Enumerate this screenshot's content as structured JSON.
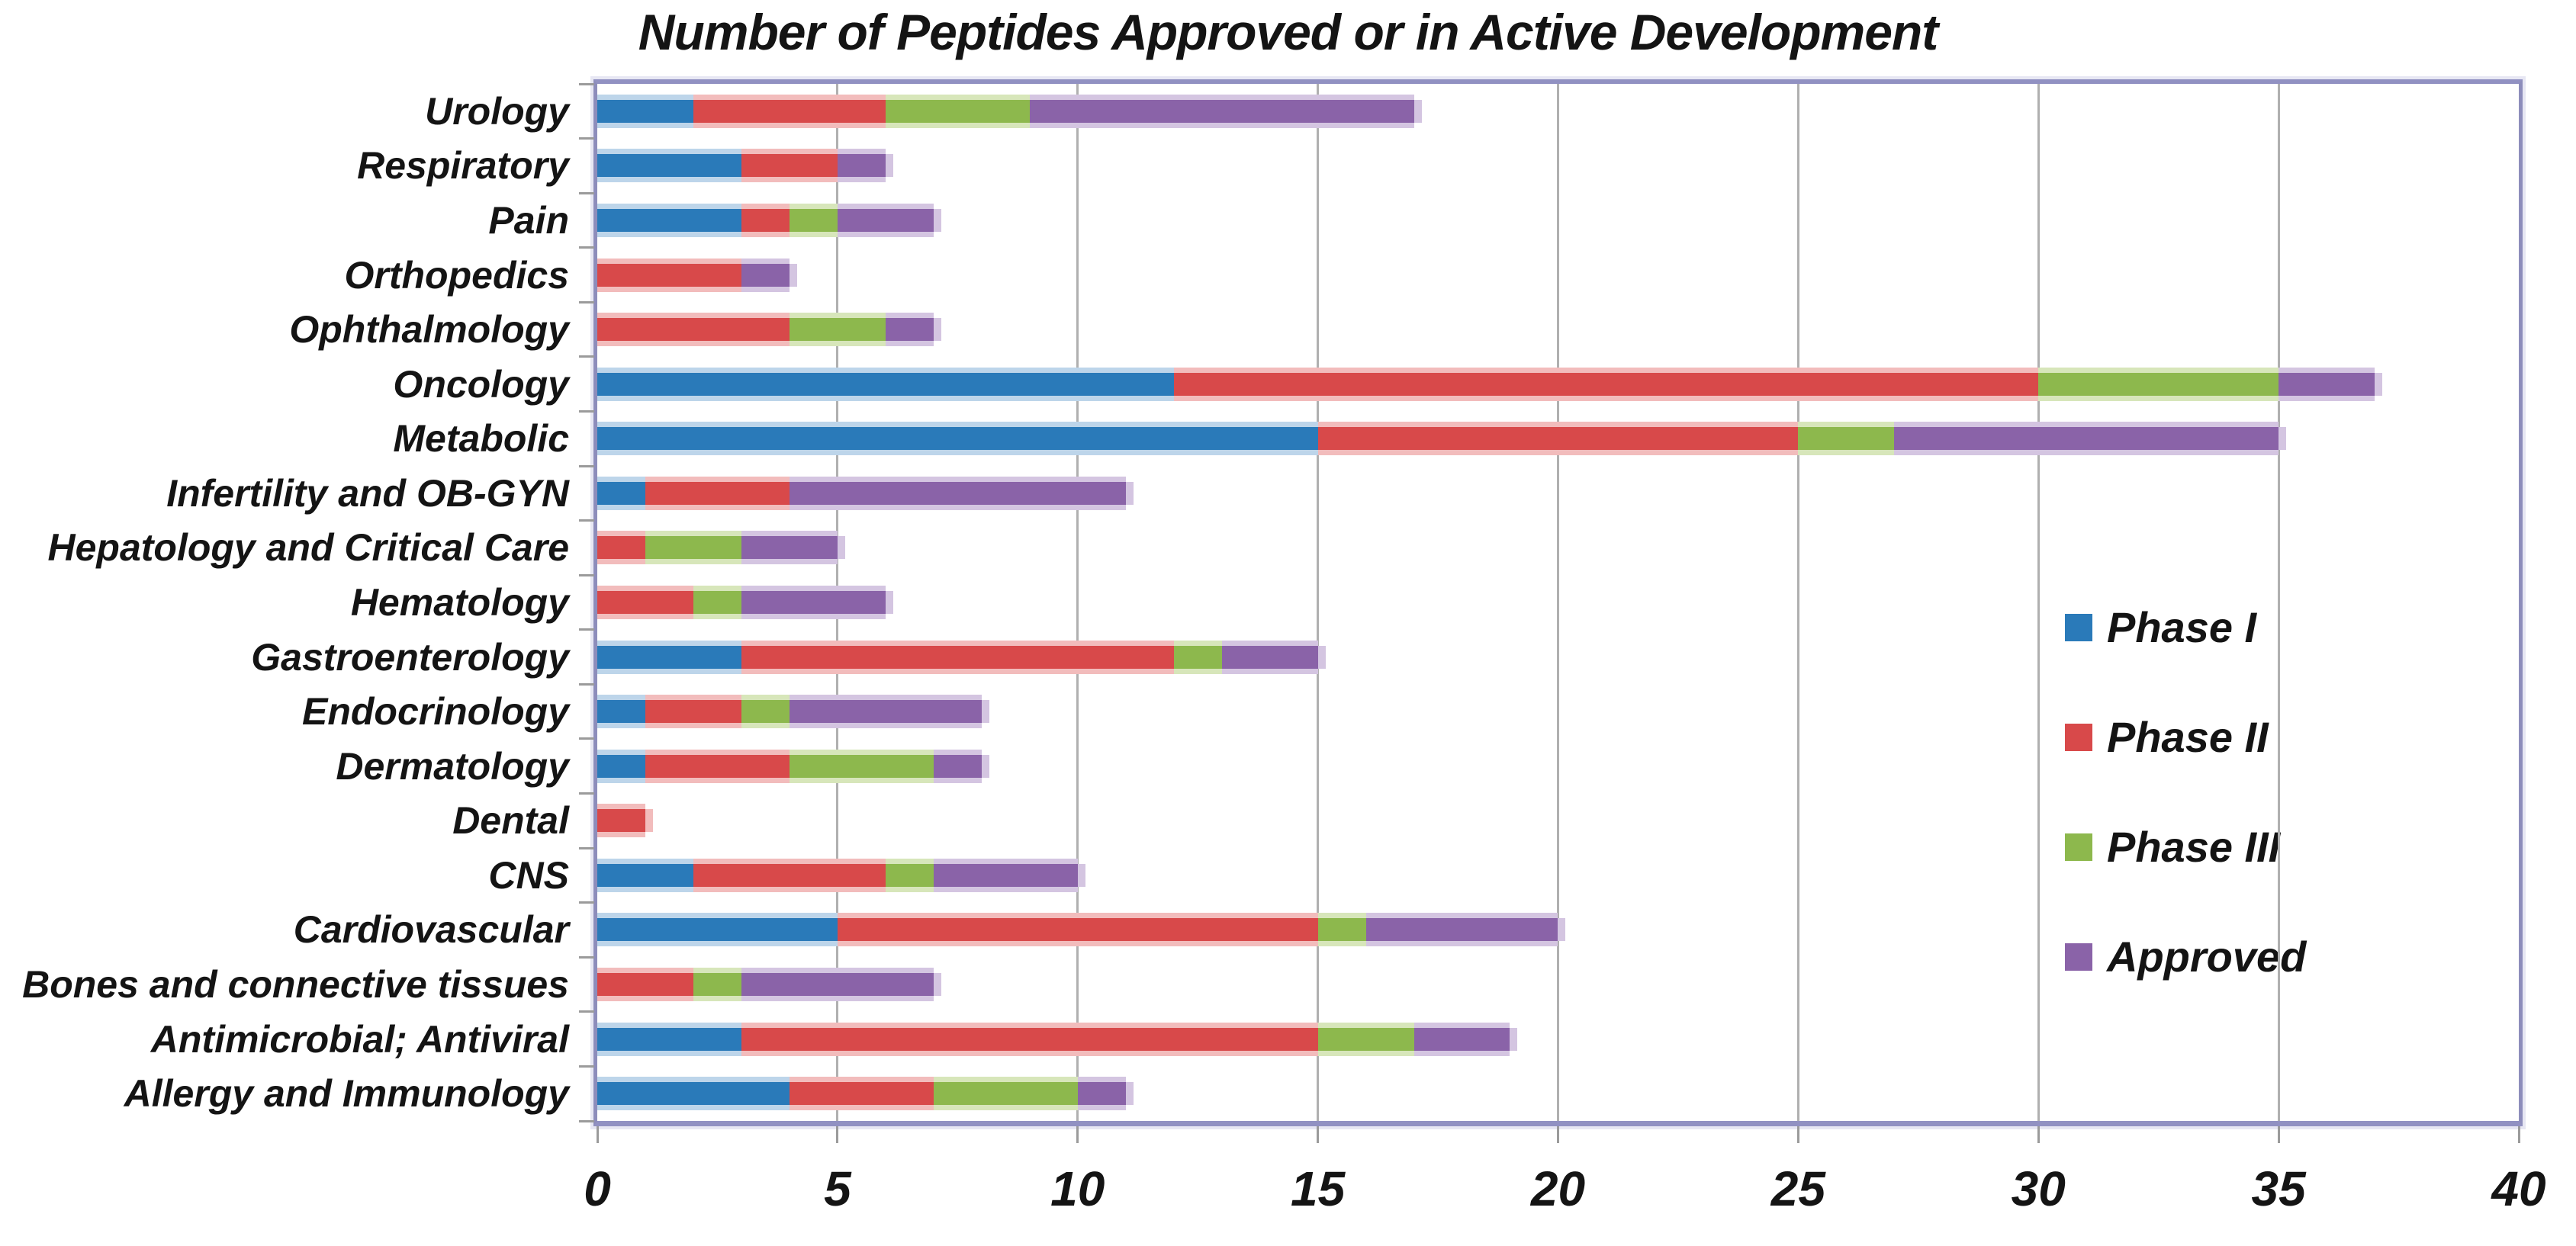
{
  "title": "Number of Peptides Approved or in Active Development",
  "colors": {
    "background": "#ffffff",
    "text": "#141414",
    "gridline": "#b0b0b0",
    "tick": "#9b9b9b",
    "plot_border": "#9191c2"
  },
  "chart_data": {
    "type": "bar",
    "orientation": "horizontal",
    "stacked": true,
    "title": "Number of Peptides Approved or in Active Development",
    "xlabel": "",
    "ylabel": "",
    "xlim": [
      0,
      40
    ],
    "xticks": [
      0,
      5,
      10,
      15,
      20,
      25,
      30,
      35,
      40
    ],
    "grid": true,
    "legend_position": "middle-right",
    "categories": [
      "Urology",
      "Respiratory",
      "Pain",
      "Orthopedics",
      "Ophthalmology",
      "Oncology",
      "Metabolic",
      "Infertility and OB-GYN",
      "Hepatology and Critical Care",
      "Hematology",
      "Gastroenterology",
      "Endocrinology",
      "Dermatology",
      "Dental",
      "CNS",
      "Cardiovascular",
      "Bones and connective tissues",
      "Antimicrobial; Antiviral",
      "Allergy and Immunology"
    ],
    "series": [
      {
        "name": "Phase I",
        "color": "#2a7ab9",
        "halo": "#bdd5ea",
        "values": [
          2,
          3,
          3,
          0,
          0,
          12,
          15,
          1,
          0,
          0,
          3,
          1,
          1,
          0,
          2,
          5,
          0,
          3,
          4
        ]
      },
      {
        "name": "Phase II",
        "color": "#d8494a",
        "halo": "#f2bcbc",
        "values": [
          4,
          2,
          1,
          3,
          4,
          18,
          10,
          3,
          1,
          2,
          9,
          2,
          3,
          1,
          4,
          10,
          2,
          12,
          3
        ]
      },
      {
        "name": "Phase III",
        "color": "#8db84d",
        "halo": "#d7e6ba",
        "values": [
          3,
          0,
          1,
          0,
          2,
          5,
          2,
          0,
          2,
          1,
          1,
          1,
          3,
          0,
          1,
          1,
          1,
          2,
          3
        ]
      },
      {
        "name": "Approved",
        "color": "#8a63a8",
        "halo": "#d4c5e1",
        "values": [
          8,
          1,
          2,
          1,
          1,
          2,
          8,
          7,
          2,
          3,
          2,
          4,
          1,
          0,
          3,
          4,
          4,
          2,
          1
        ]
      }
    ],
    "totals": [
      17,
      6,
      7,
      4,
      7,
      37,
      35,
      11,
      5,
      6,
      15,
      8,
      8,
      1,
      10,
      20,
      7,
      19,
      11
    ]
  }
}
